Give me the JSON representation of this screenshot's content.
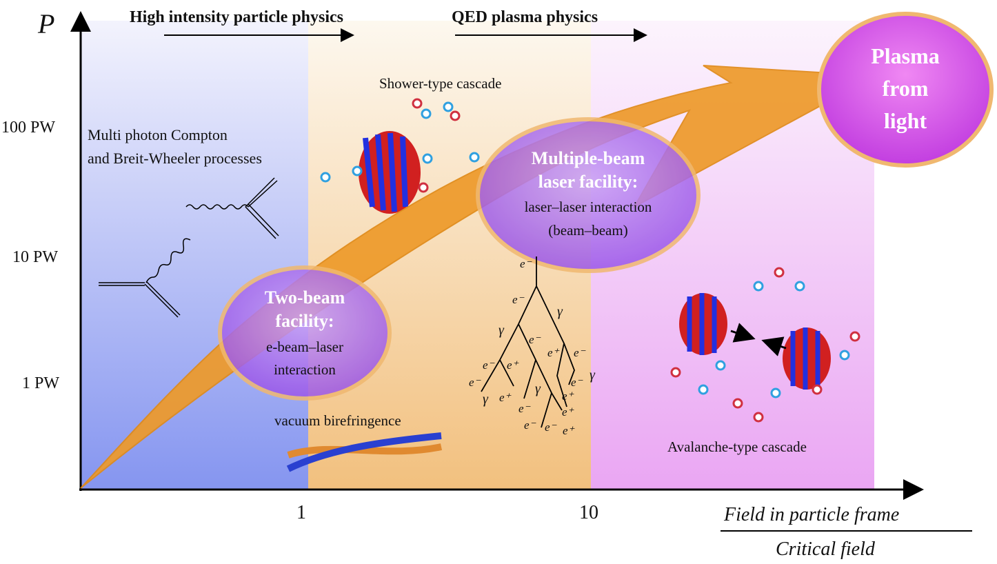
{
  "axes": {
    "y_label": "P",
    "y_ticks": [
      "100 PW",
      "10 PW",
      "1 PW"
    ],
    "x_ticks": [
      "1",
      "10"
    ],
    "x_label_numerator": "Field in particle frame",
    "x_label_denominator": "Critical field"
  },
  "regimes": {
    "left": "High intensity particle physics",
    "right": "QED plasma physics"
  },
  "region_colors": {
    "blue": "#8f9cf2",
    "orange": "#f3c88c",
    "pink": "#efb2f5",
    "arrow": "#ee9a2a"
  },
  "labels": {
    "compton_line1": "Multi photon Compton",
    "compton_line2": "and Breit-Wheeler processes",
    "shower": "Shower-type cascade",
    "birefringence": "vacuum birefringence",
    "avalanche": "Avalanche-type cascade"
  },
  "facilities": {
    "two_beam": {
      "title1": "Two-beam",
      "title2": "facility:",
      "sub1": "e-beam–laser",
      "sub2": "interaction"
    },
    "multi_beam": {
      "title1": "Multiple-beam",
      "title2": "laser facility:",
      "sub1": "laser–laser interaction",
      "sub2": "(beam–beam)"
    },
    "plasma": {
      "line1": "Plasma",
      "line2": "from",
      "line3": "light"
    }
  },
  "cascade_labels": [
    "e⁻",
    "e⁻",
    "γ",
    "γ",
    "e⁻",
    "e⁺",
    "e⁻",
    "e⁻",
    "e⁺",
    "e⁻",
    "γ",
    "γ",
    "e⁺",
    "e⁻",
    "e⁺",
    "e⁺",
    "e⁻",
    "γ",
    "e⁻",
    "e⁺",
    "e⁻"
  ]
}
